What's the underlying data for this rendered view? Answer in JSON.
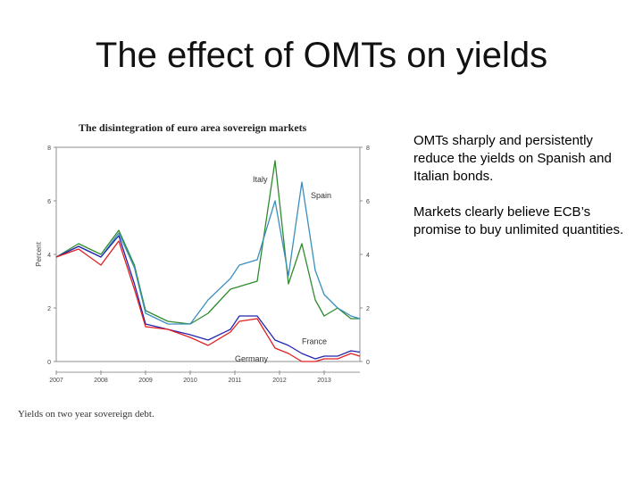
{
  "slide": {
    "title": "The effect of OMTs on yields",
    "notes": [
      "OMTs sharply and persistently reduce the yields on Spanish and Italian bonds.",
      "Markets clearly believe ECB’s promise to buy unlimited quantities."
    ]
  },
  "chart_data": {
    "type": "line",
    "title": "The disintegration of euro area sovereign markets",
    "caption": "Yields on two year sovereign debt.",
    "ylabel": "Percent",
    "xlim": [
      2007.0,
      2013.8
    ],
    "ylim": [
      0,
      8
    ],
    "x_ticks": [
      "2007",
      "2008",
      "2009",
      "2010",
      "2011",
      "2012",
      "2013"
    ],
    "y_ticks": [
      "0",
      "2",
      "4",
      "6",
      "8"
    ],
    "grid": false,
    "colors": {
      "Italy": "#2e8b2e",
      "Spain": "#3a8fbf",
      "France": "#2424b0",
      "Germany": "#e02020"
    },
    "x": [
      2007.0,
      2007.5,
      2008.0,
      2008.4,
      2008.75,
      2009.0,
      2009.5,
      2010.0,
      2010.4,
      2010.9,
      2011.1,
      2011.5,
      2011.9,
      2012.2,
      2012.5,
      2012.8,
      2013.0,
      2013.3,
      2013.6,
      2013.8
    ],
    "series": [
      {
        "name": "Italy",
        "values": [
          3.9,
          4.4,
          4.0,
          4.9,
          3.6,
          1.9,
          1.5,
          1.4,
          1.8,
          2.7,
          2.8,
          3.0,
          7.5,
          2.9,
          4.4,
          2.3,
          1.7,
          2.0,
          1.6,
          1.6
        ]
      },
      {
        "name": "Spain",
        "values": [
          3.9,
          4.3,
          3.9,
          4.8,
          3.5,
          1.8,
          1.4,
          1.4,
          2.3,
          3.1,
          3.6,
          3.8,
          6.0,
          3.2,
          6.7,
          3.4,
          2.5,
          2.0,
          1.7,
          1.6
        ]
      },
      {
        "name": "France",
        "values": [
          3.9,
          4.3,
          3.9,
          4.7,
          2.9,
          1.4,
          1.2,
          1.0,
          0.8,
          1.2,
          1.7,
          1.7,
          0.8,
          0.6,
          0.3,
          0.1,
          0.2,
          0.2,
          0.4,
          0.35
        ]
      },
      {
        "name": "Germany",
        "values": [
          3.9,
          4.2,
          3.6,
          4.5,
          2.7,
          1.3,
          1.2,
          0.9,
          0.6,
          1.1,
          1.5,
          1.6,
          0.5,
          0.3,
          0.0,
          0.0,
          0.1,
          0.1,
          0.3,
          0.2
        ]
      }
    ],
    "annotations": [
      {
        "text": "Italy",
        "x": 2011.4,
        "y": 6.7
      },
      {
        "text": "Spain",
        "x": 2012.7,
        "y": 6.1
      },
      {
        "text": "France",
        "x": 2012.5,
        "y": 0.65
      },
      {
        "text": "Germany",
        "x": 2011.0,
        "y": 0.0
      }
    ]
  }
}
